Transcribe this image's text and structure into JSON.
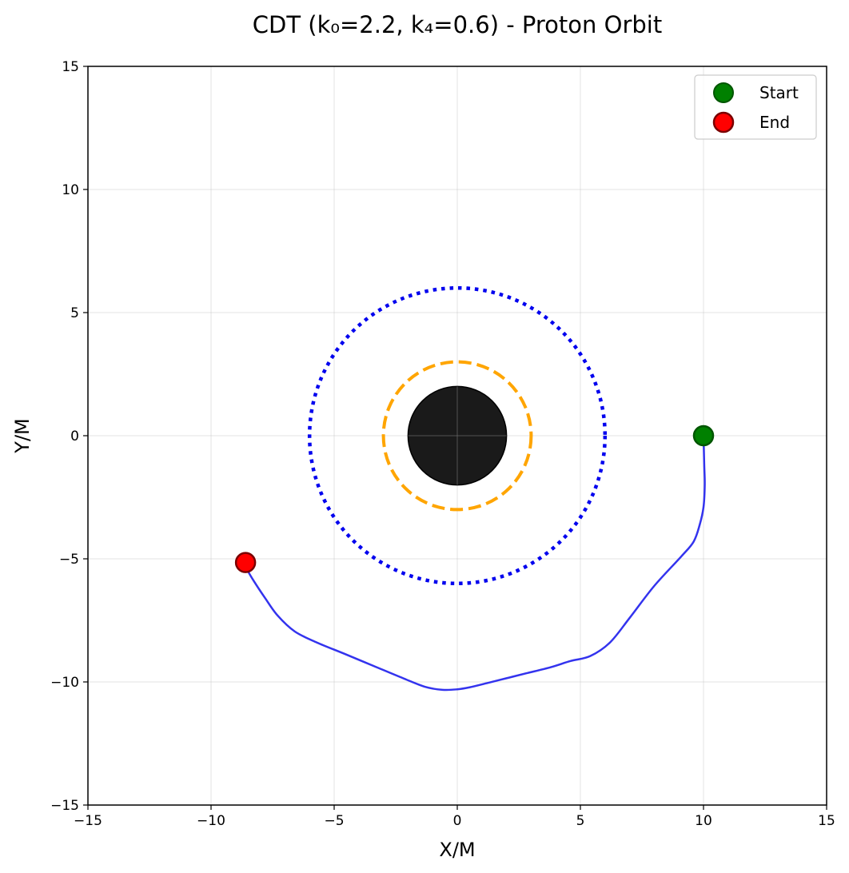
{
  "chart_data": {
    "type": "line",
    "title": "CDT (k₀=2.2, k₄=0.6) - Proton Orbit",
    "xlabel": "X/M",
    "ylabel": "Y/M",
    "xlim": [
      -15,
      15
    ],
    "ylim": [
      -15,
      15
    ],
    "xticks": [
      -15,
      -10,
      -5,
      0,
      5,
      10,
      15
    ],
    "yticks": [
      -15,
      -10,
      -5,
      0,
      5,
      10,
      15
    ],
    "xtick_labels": [
      "−15",
      "−10",
      "−5",
      "0",
      "5",
      "10",
      "15"
    ],
    "ytick_labels": [
      "−15",
      "−10",
      "−5",
      "0",
      "5",
      "10",
      "15"
    ],
    "grid": true,
    "legend_position": "top-right",
    "black_hole": {
      "center": [
        0,
        0
      ],
      "radius": 2.0,
      "color": "#1a1a1a"
    },
    "circles": [
      {
        "radius": 3.0,
        "style": "dashed",
        "color": "#ffa500"
      },
      {
        "radius": 6.0,
        "style": "dotted",
        "color": "#0000ee"
      }
    ],
    "trajectory": {
      "color": "#3333ee",
      "x": [
        10.0,
        10.03,
        10.05,
        10.0,
        9.85,
        9.6,
        9.1,
        8.0,
        7.0,
        6.2,
        5.4,
        4.6,
        3.8,
        2.8,
        2.0,
        1.2,
        0.5,
        0.0,
        -0.6,
        -1.3,
        -2.2,
        -3.4,
        -4.6,
        -5.7,
        -6.6,
        -7.3,
        -7.8,
        -8.2,
        -8.5,
        -8.6
      ],
      "y": [
        0.0,
        -1.2,
        -2.0,
        -2.9,
        -3.6,
        -4.3,
        -4.9,
        -6.1,
        -7.4,
        -8.4,
        -8.95,
        -9.15,
        -9.4,
        -9.65,
        -9.85,
        -10.05,
        -10.22,
        -10.3,
        -10.32,
        -10.2,
        -9.85,
        -9.35,
        -8.85,
        -8.4,
        -7.95,
        -7.3,
        -6.6,
        -6.0,
        -5.5,
        -5.15
      ]
    },
    "markers": [
      {
        "label": "Start",
        "x": 10.0,
        "y": 0.0,
        "color": "#008000",
        "edge": "#005500"
      },
      {
        "label": "End",
        "x": -8.6,
        "y": -5.15,
        "color": "#ff0000",
        "edge": "#7a0000"
      }
    ]
  }
}
